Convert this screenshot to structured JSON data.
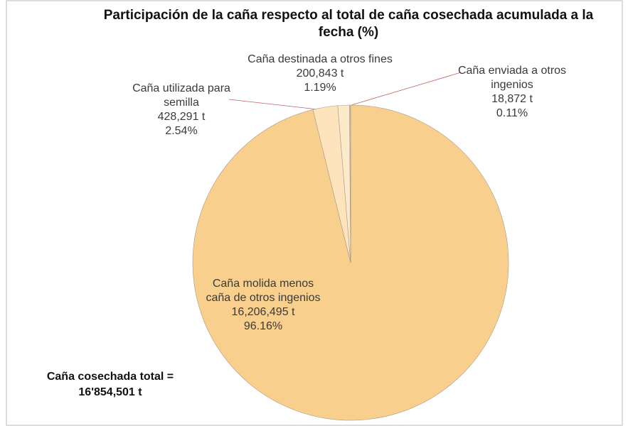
{
  "chart_data": {
    "type": "pie",
    "title": "Participación de la caña respecto al total de caña cosechada acumulada a la fecha (%)",
    "categories": [
      "Caña molida menos caña de otros ingenios",
      "Caña utilizada para semilla",
      "Caña destinada a otros fines",
      "Caña enviada a otros ingenios"
    ],
    "values": [
      96.16,
      2.54,
      1.19,
      0.11
    ],
    "value_labels": [
      "96.16%",
      "2.54%",
      "1.19%",
      "0.11%"
    ],
    "tonnage_labels": [
      "16,206,495 t",
      "428,291 t",
      "200,843 t",
      "18,872 t"
    ],
    "colors": [
      "#f9cf8e",
      "#fde4bd",
      "#fdeacb",
      "#c9c2b8"
    ],
    "annotation": "Caña cosechada total = 16'854,501 t"
  }
}
